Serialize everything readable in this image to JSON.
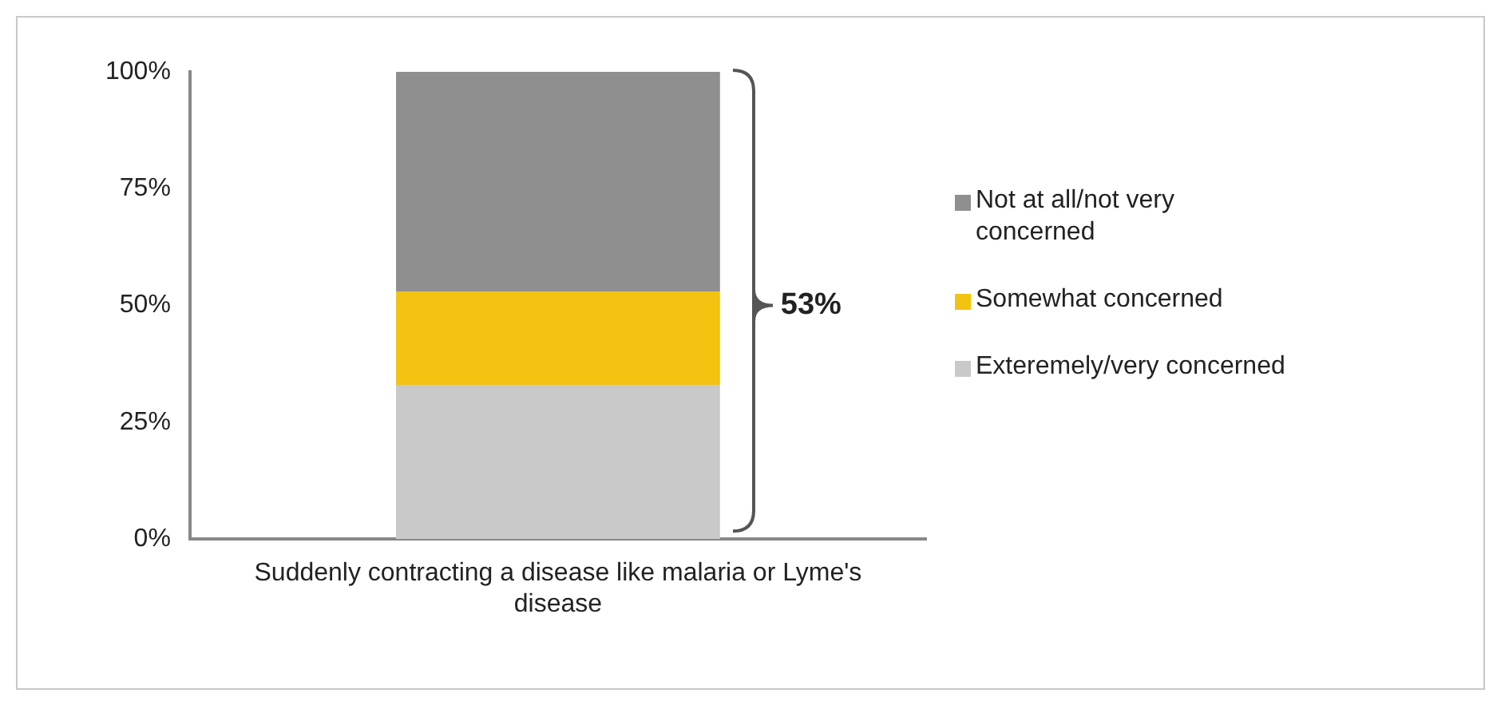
{
  "chart_data": {
    "type": "bar",
    "stacked": true,
    "categories": [
      "Suddenly contracting a disease like malaria or Lyme's disease"
    ],
    "series": [
      {
        "name": "Exteremely/very concerned",
        "color": "#c9c9c9",
        "values": [
          33
        ]
      },
      {
        "name": "Somewhat concerned",
        "color": "#f2c311",
        "values": [
          20
        ]
      },
      {
        "name": "Not at all/not very concerned",
        "color": "#8f8f8f",
        "values": [
          47
        ]
      }
    ],
    "ylim": [
      0,
      100
    ],
    "yticks": [
      {
        "value": 0,
        "label": "0%"
      },
      {
        "value": 25,
        "label": "25%"
      },
      {
        "value": 50,
        "label": "50%"
      },
      {
        "value": 75,
        "label": "75%"
      },
      {
        "value": 100,
        "label": "100%"
      }
    ],
    "grid": false,
    "legend": "right",
    "annotations": [
      "53%"
    ]
  }
}
